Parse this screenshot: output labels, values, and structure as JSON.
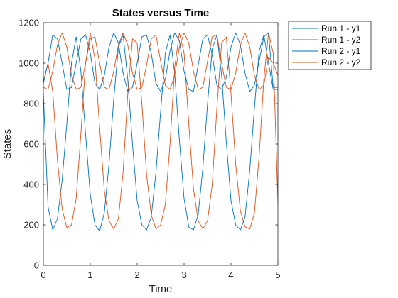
{
  "chart_data": {
    "type": "line",
    "title": "States versus Time",
    "xlabel": "Time",
    "ylabel": "States",
    "xlim": [
      0,
      5
    ],
    "ylim": [
      0,
      1200
    ],
    "xticks": [
      "0",
      "1",
      "2",
      "3",
      "4",
      "5"
    ],
    "yticks": [
      "0",
      "200",
      "400",
      "600",
      "800",
      "1000",
      "1200"
    ],
    "grid": false,
    "legend_position": "top-right, outside",
    "x": [
      0.0,
      0.1,
      0.2,
      0.3,
      0.4,
      0.5,
      0.6,
      0.7,
      0.8,
      0.9,
      1.0,
      1.1,
      1.2,
      1.3,
      1.4,
      1.5,
      1.6,
      1.7,
      1.8,
      1.9,
      2.0,
      2.1,
      2.2,
      2.3,
      2.4,
      2.5,
      2.6,
      2.7,
      2.8,
      2.9,
      3.0,
      3.1,
      3.2,
      3.3,
      3.4,
      3.5,
      3.6,
      3.7,
      3.8,
      3.9,
      4.0,
      4.1,
      4.2,
      4.3,
      4.4,
      4.5,
      4.6,
      4.7,
      4.8,
      4.9,
      5.0
    ],
    "series": [
      {
        "name": "Run 1 - y1",
        "color": "#0072BD",
        "values": [
          850,
          290,
          175,
          230,
          420,
          700,
          1000,
          1130,
          960,
          650,
          350,
          200,
          170,
          260,
          500,
          820,
          1080,
          1140,
          920,
          600,
          320,
          200,
          175,
          240,
          460,
          760,
          1050,
          1140,
          950,
          620,
          330,
          190,
          175,
          250,
          480,
          800,
          1070,
          1140,
          940,
          610,
          320,
          200,
          175,
          240,
          470,
          780,
          1060,
          1140,
          1000,
          870,
          870
        ]
      },
      {
        "name": "Run 1 - y2",
        "color": "#D95319",
        "values": [
          910,
          1000,
          860,
          520,
          280,
          185,
          200,
          330,
          650,
          1000,
          1150,
          1020,
          680,
          370,
          220,
          180,
          230,
          460,
          850,
          1120,
          1100,
          800,
          450,
          250,
          180,
          200,
          300,
          600,
          980,
          1150,
          1050,
          700,
          380,
          220,
          180,
          220,
          400,
          780,
          1100,
          1130,
          850,
          500,
          270,
          190,
          180,
          260,
          540,
          920,
          1150,
          1050,
          310
        ]
      },
      {
        "name": "Run 2 - y1",
        "color": "#0072BD",
        "values": [
          900,
          1000,
          1140,
          1120,
          1000,
          870,
          880,
          1000,
          1120,
          1140,
          1050,
          900,
          870,
          940,
          1080,
          1150,
          1100,
          950,
          860,
          880,
          1000,
          1130,
          1140,
          1050,
          900,
          860,
          920,
          1060,
          1150,
          1110,
          960,
          870,
          860,
          990,
          1120,
          1140,
          1040,
          890,
          870,
          930,
          1080,
          1150,
          1090,
          950,
          860,
          890,
          1010,
          1130,
          1150,
          880,
          880
        ]
      },
      {
        "name": "Run 2 - y2",
        "color": "#D95319",
        "values": [
          880,
          870,
          960,
          1090,
          1150,
          1080,
          940,
          870,
          880,
          1000,
          1120,
          1130,
          1000,
          880,
          870,
          960,
          1090,
          1150,
          1090,
          950,
          870,
          880,
          990,
          1120,
          1140,
          1010,
          890,
          870,
          940,
          1080,
          1150,
          1100,
          960,
          870,
          880,
          1010,
          1130,
          1140,
          1000,
          880,
          870,
          950,
          1090,
          1150,
          1080,
          940,
          870,
          890,
          1030,
          1000,
          940
        ]
      }
    ]
  }
}
